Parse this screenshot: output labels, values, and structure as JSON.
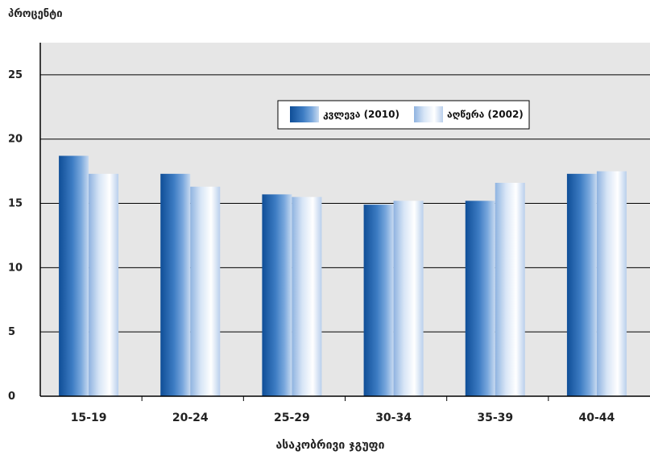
{
  "chart_data": {
    "type": "bar",
    "ylabel": "პროცენტი",
    "xlabel": "ასაკობრივი ჯგუფი",
    "categories": [
      "15-19",
      "20-24",
      "25-29",
      "30-34",
      "35-39",
      "40-44"
    ],
    "series": [
      {
        "name": "კვლევა (2010)",
        "values": [
          18.7,
          17.3,
          15.7,
          14.9,
          15.2,
          17.3
        ]
      },
      {
        "name": "აღწერა (2002)",
        "values": [
          17.3,
          16.3,
          15.5,
          15.2,
          16.6,
          17.5
        ]
      }
    ],
    "ylim": [
      0,
      27.5
    ],
    "yticks": [
      0,
      5,
      10,
      15,
      20,
      25
    ],
    "grid": true,
    "legend_position": "top-right",
    "colors": {
      "plot_background": "#e6e6e6",
      "series1": "#1f5fa6",
      "series2": "#c6d9f1",
      "axis": "#000000",
      "grid": "#000000"
    }
  }
}
